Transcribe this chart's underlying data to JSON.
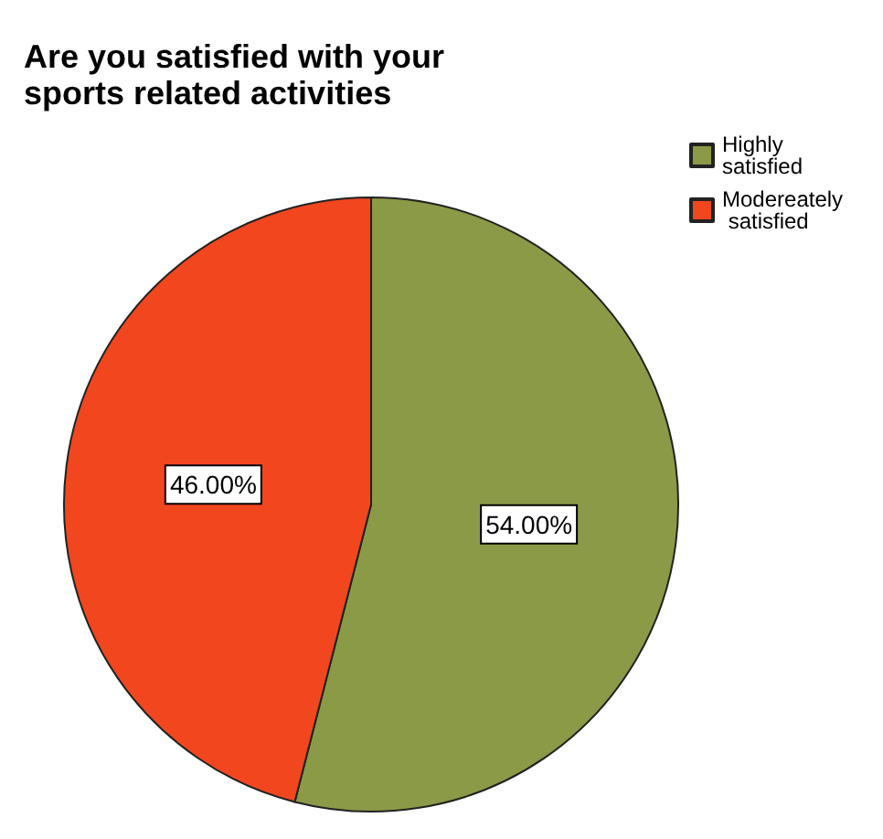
{
  "chart_data": {
    "type": "pie",
    "title": "Are you satisfied with your sports related activities",
    "categories": [
      "Highly satisfied",
      "Modereately satisfied"
    ],
    "values": [
      54,
      46
    ],
    "colors": [
      "#8b9a47",
      "#f2461f"
    ],
    "value_labels": [
      "54.00%",
      "46.00%"
    ],
    "legend": "top right"
  }
}
